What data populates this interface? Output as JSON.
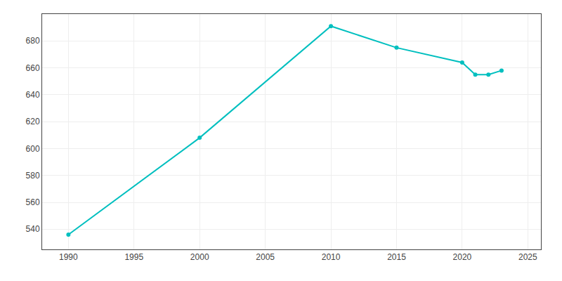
{
  "chart_data": {
    "type": "line",
    "x": [
      1990,
      2000,
      2010,
      2015,
      2020,
      2021,
      2022,
      2023
    ],
    "values": [
      536,
      608,
      691,
      675,
      664,
      655,
      655,
      658
    ],
    "color": "#00BFBF",
    "marker": "circle",
    "xlim": [
      1988,
      2026
    ],
    "xticks": [
      1990,
      1995,
      2000,
      2005,
      2010,
      2015,
      2020,
      2025
    ],
    "ylim": [
      525,
      700
    ],
    "yticks": [
      540,
      560,
      580,
      600,
      620,
      640,
      660,
      680
    ],
    "grid": true
  }
}
